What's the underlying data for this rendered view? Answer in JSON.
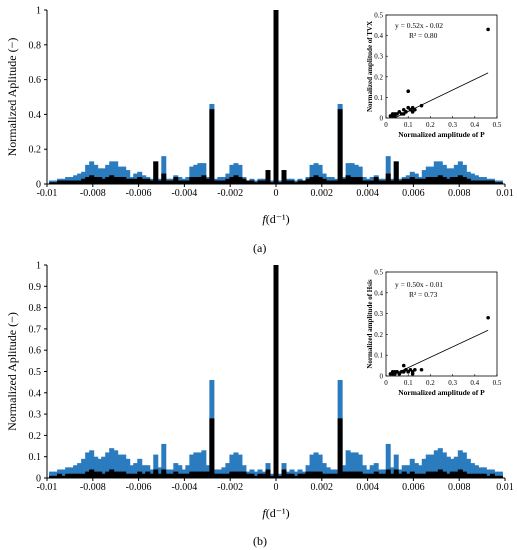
{
  "figure": {
    "panel_labels": [
      "(a)",
      "(b)"
    ]
  },
  "colors": {
    "blue": "#2b7bbf",
    "black": "#000000",
    "axis": "#000000"
  },
  "chart_data": [
    {
      "type": "bar",
      "panel": "(a)",
      "xlabel": "f(d⁻¹)",
      "ylabel": "Normalized Aplitude (−)",
      "xlim": [
        -0.01,
        0.01
      ],
      "ylim": [
        0,
        1
      ],
      "xticks": [
        "-0.01",
        "-0.008",
        "-0.006",
        "-0.004",
        "-0.002",
        "0",
        "0.002",
        "0.004",
        "0.006",
        "0.008",
        "0.01"
      ],
      "yticks": [
        "0",
        "0.2",
        "0.4",
        "0.6",
        "0.8",
        "1"
      ],
      "series": [
        {
          "color": "blue",
          "x": [
            0.000175,
            0.00035,
            0.000525,
            0.0007,
            0.000875,
            0.00105,
            0.001225,
            0.0014,
            0.001575,
            0.00175,
            0.001925,
            0.0021,
            0.002275,
            0.00245,
            0.002625,
            0.0028,
            0.002975,
            0.00315,
            0.003325,
            0.0035,
            0.003675,
            0.00385,
            0.004025,
            0.0042,
            0.004375,
            0.00455,
            0.004725,
            0.0049,
            0.005075,
            0.00525,
            0.005425,
            0.0056,
            0.005775,
            0.00595,
            0.006125,
            0.0063,
            0.006475,
            0.00665,
            0.006825,
            0.007,
            0.007175,
            0.00735,
            0.007525,
            0.0077,
            0.007875,
            0.00805,
            0.008225,
            0.0084,
            0.008575,
            0.00875,
            0.008925,
            0.0091,
            0.009275,
            0.00945,
            0.009625,
            0.0098
          ],
          "y": [
            0.02,
            0.08,
            0.03,
            0.03,
            0.02,
            0.03,
            0.02,
            0.04,
            0.11,
            0.12,
            0.11,
            0.06,
            0.04,
            0.04,
            0.03,
            0.46,
            0.04,
            0.12,
            0.12,
            0.11,
            0.1,
            0.04,
            0.03,
            0.04,
            0.05,
            0.03,
            0.03,
            0.16,
            0.03,
            0.13,
            0.03,
            0.04,
            0.05,
            0.07,
            0.06,
            0.04,
            0.08,
            0.1,
            0.1,
            0.13,
            0.13,
            0.11,
            0.09,
            0.09,
            0.11,
            0.13,
            0.11,
            0.07,
            0.06,
            0.05,
            0.04,
            0.04,
            0.03,
            0.03,
            0.02,
            0.02
          ]
        },
        {
          "color": "black",
          "x": [
            0.000175,
            0.00035,
            0.000525,
            0.0007,
            0.000875,
            0.00105,
            0.001225,
            0.0014,
            0.001575,
            0.00175,
            0.001925,
            0.0021,
            0.002275,
            0.00245,
            0.002625,
            0.0028,
            0.002975,
            0.00315,
            0.003325,
            0.0035,
            0.003675,
            0.00385,
            0.004025,
            0.0042,
            0.004375,
            0.00455,
            0.004725,
            0.0049,
            0.005075,
            0.00525,
            0.005425,
            0.0056,
            0.005775,
            0.00595,
            0.006125,
            0.0063,
            0.006475,
            0.00665,
            0.006825,
            0.007,
            0.007175,
            0.00735,
            0.007525,
            0.0077,
            0.007875,
            0.00805,
            0.008225,
            0.0084,
            0.008575,
            0.00875,
            0.008925,
            0.0091,
            0.009275,
            0.00945,
            0.009625,
            0.0098
          ],
          "y": [
            0.01,
            0.08,
            0.02,
            0.02,
            0.01,
            0.02,
            0.02,
            0.03,
            0.04,
            0.05,
            0.04,
            0.03,
            0.02,
            0.02,
            0.02,
            0.43,
            0.03,
            0.05,
            0.04,
            0.04,
            0.04,
            0.02,
            0.02,
            0.02,
            0.04,
            0.02,
            0.02,
            0.06,
            0.02,
            0.13,
            0.02,
            0.03,
            0.03,
            0.04,
            0.03,
            0.03,
            0.03,
            0.04,
            0.04,
            0.04,
            0.05,
            0.04,
            0.03,
            0.04,
            0.04,
            0.05,
            0.04,
            0.03,
            0.02,
            0.02,
            0.02,
            0.02,
            0.02,
            0.02,
            0.01,
            0.01
          ]
        },
        {
          "color": "black",
          "x": [
            0.0
          ],
          "y": [
            1.0
          ]
        }
      ],
      "symmetric": true,
      "inset": {
        "type": "scatter",
        "equation": "y = 0.52x - 0.02",
        "r2": "R² = 0.80",
        "xlabel": "Normalized amplitude of P",
        "ylabel": "Normalized amplitude of TVX",
        "xlim": [
          0,
          0.5
        ],
        "ylim": [
          0,
          0.5
        ],
        "xticks": [
          "0",
          "0.1",
          "0.2",
          "0.3",
          "0.4",
          "0.5"
        ],
        "yticks": [
          "0",
          "0.1",
          "0.2",
          "0.3",
          "0.4",
          "0.5"
        ],
        "points": [
          [
            0.02,
            0.01
          ],
          [
            0.03,
            0.02
          ],
          [
            0.04,
            0.01
          ],
          [
            0.05,
            0.02
          ],
          [
            0.06,
            0.03
          ],
          [
            0.07,
            0.02
          ],
          [
            0.08,
            0.04
          ],
          [
            0.09,
            0.03
          ],
          [
            0.1,
            0.05
          ],
          [
            0.11,
            0.04
          ],
          [
            0.12,
            0.03
          ],
          [
            0.13,
            0.04
          ],
          [
            0.1,
            0.13
          ],
          [
            0.16,
            0.06
          ],
          [
            0.04,
            0.02
          ],
          [
            0.03,
            0.01
          ],
          [
            0.08,
            0.02
          ],
          [
            0.12,
            0.05
          ],
          [
            0.46,
            0.43
          ]
        ],
        "fit": {
          "slope": 0.52,
          "intercept": -0.02
        }
      }
    },
    {
      "type": "bar",
      "panel": "(b)",
      "xlabel": "f(d⁻¹)",
      "ylabel": "Normalized Aplitude (−)",
      "xlim": [
        -0.01,
        0.01
      ],
      "ylim": [
        0,
        1
      ],
      "xticks": [
        "-0.01",
        "-0.008",
        "-0.006",
        "-0.004",
        "-0.002",
        "0",
        "0.002",
        "0.004",
        "0.006",
        "0.008",
        "0.01"
      ],
      "yticks": [
        "0",
        "0.1",
        "0.2",
        "0.3",
        "0.4",
        "0.5",
        "0.6",
        "0.7",
        "0.8",
        "0.9",
        "1"
      ],
      "series": [
        {
          "color": "blue",
          "x": [
            0.000175,
            0.00035,
            0.000525,
            0.0007,
            0.000875,
            0.00105,
            0.001225,
            0.0014,
            0.001575,
            0.00175,
            0.001925,
            0.0021,
            0.002275,
            0.00245,
            0.002625,
            0.0028,
            0.002975,
            0.00315,
            0.003325,
            0.0035,
            0.003675,
            0.00385,
            0.004025,
            0.0042,
            0.004375,
            0.00455,
            0.004725,
            0.0049,
            0.005075,
            0.00525,
            0.005425,
            0.0056,
            0.005775,
            0.00595,
            0.006125,
            0.0063,
            0.006475,
            0.00665,
            0.006825,
            0.007,
            0.007175,
            0.00735,
            0.007525,
            0.0077,
            0.007875,
            0.00805,
            0.008225,
            0.0084,
            0.008575,
            0.00875,
            0.008925,
            0.0091,
            0.009275,
            0.00945,
            0.009625,
            0.0098
          ],
          "y": [
            0.02,
            0.07,
            0.03,
            0.04,
            0.03,
            0.04,
            0.03,
            0.06,
            0.11,
            0.12,
            0.11,
            0.07,
            0.05,
            0.04,
            0.04,
            0.46,
            0.06,
            0.13,
            0.12,
            0.12,
            0.11,
            0.06,
            0.04,
            0.06,
            0.07,
            0.04,
            0.04,
            0.16,
            0.05,
            0.11,
            0.04,
            0.06,
            0.06,
            0.09,
            0.07,
            0.06,
            0.09,
            0.11,
            0.11,
            0.13,
            0.14,
            0.12,
            0.1,
            0.09,
            0.1,
            0.13,
            0.12,
            0.09,
            0.07,
            0.06,
            0.05,
            0.05,
            0.04,
            0.04,
            0.03,
            0.03
          ]
        },
        {
          "color": "black",
          "x": [
            0.000175,
            0.00035,
            0.000525,
            0.0007,
            0.000875,
            0.00105,
            0.001225,
            0.0014,
            0.001575,
            0.00175,
            0.001925,
            0.0021,
            0.002275,
            0.00245,
            0.002625,
            0.0028,
            0.002975,
            0.00315,
            0.003325,
            0.0035,
            0.003675,
            0.00385,
            0.004025,
            0.0042,
            0.004375,
            0.00455,
            0.004725,
            0.0049,
            0.005075,
            0.00525,
            0.005425,
            0.0056,
            0.005775,
            0.00595,
            0.006125,
            0.0063,
            0.006475,
            0.00665,
            0.006825,
            0.007,
            0.007175,
            0.00735,
            0.007525,
            0.0077,
            0.007875,
            0.00805,
            0.008225,
            0.0084,
            0.008575,
            0.00875,
            0.008925,
            0.0091,
            0.009275,
            0.00945,
            0.009625,
            0.0098
          ],
          "y": [
            0.01,
            0.04,
            0.02,
            0.02,
            0.01,
            0.02,
            0.02,
            0.03,
            0.03,
            0.03,
            0.03,
            0.02,
            0.02,
            0.02,
            0.02,
            0.28,
            0.03,
            0.03,
            0.03,
            0.03,
            0.03,
            0.02,
            0.02,
            0.02,
            0.03,
            0.02,
            0.02,
            0.04,
            0.02,
            0.04,
            0.02,
            0.03,
            0.02,
            0.03,
            0.02,
            0.02,
            0.02,
            0.03,
            0.03,
            0.03,
            0.04,
            0.03,
            0.02,
            0.03,
            0.03,
            0.04,
            0.03,
            0.02,
            0.02,
            0.02,
            0.02,
            0.02,
            0.01,
            0.02,
            0.01,
            0.01
          ]
        },
        {
          "color": "black",
          "x": [
            0.0
          ],
          "y": [
            1.0
          ]
        }
      ],
      "symmetric": true,
      "inset": {
        "type": "scatter",
        "equation": "y = 0.50x - 0.01",
        "r2": "R² = 0.73",
        "xlabel": "Normalized amplitude of P",
        "ylabel": "Normalized amplitude of Hsis",
        "xlim": [
          0,
          0.5
        ],
        "ylim": [
          0,
          0.5
        ],
        "xticks": [
          "0",
          "0.1",
          "0.2",
          "0.3",
          "0.4",
          "0.5"
        ],
        "yticks": [
          "0",
          "0.1",
          "0.2",
          "0.3",
          "0.4",
          "0.5"
        ],
        "points": [
          [
            0.02,
            0.01
          ],
          [
            0.03,
            0.02
          ],
          [
            0.04,
            0.01
          ],
          [
            0.05,
            0.02
          ],
          [
            0.06,
            0.01
          ],
          [
            0.07,
            0.02
          ],
          [
            0.08,
            0.05
          ],
          [
            0.09,
            0.03
          ],
          [
            0.1,
            0.02
          ],
          [
            0.11,
            0.03
          ],
          [
            0.12,
            0.02
          ],
          [
            0.13,
            0.03
          ],
          [
            0.16,
            0.03
          ],
          [
            0.04,
            0.02
          ],
          [
            0.03,
            0.01
          ],
          [
            0.08,
            0.02
          ],
          [
            0.12,
            0.01
          ],
          [
            0.46,
            0.28
          ]
        ],
        "fit": {
          "slope": 0.5,
          "intercept": -0.01
        }
      }
    }
  ]
}
